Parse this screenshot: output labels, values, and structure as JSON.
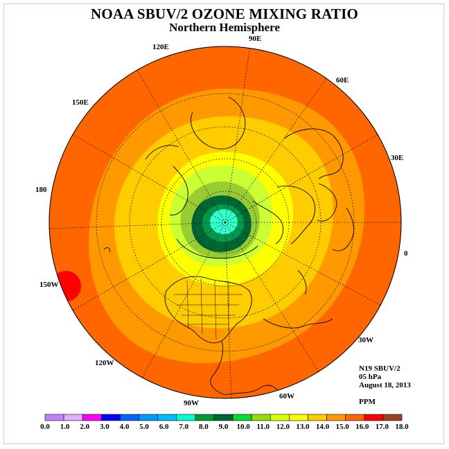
{
  "title": "NOAA SBUV/2 OZONE MIXING RATIO",
  "subtitle": "Northern Hemisphere",
  "longitude_labels": [
    "90E",
    "60E",
    "30E",
    "0",
    "30W",
    "60W",
    "90W",
    "120W",
    "150W",
    "180",
    "150E",
    "120E"
  ],
  "info": {
    "satellite": "N19 SBUV/2",
    "pressure": "05 hPa",
    "date": "August 18, 2013",
    "units": "PPM"
  },
  "colors": {
    "outer_band": "#ff6600",
    "band_15": "#ff9900",
    "band_14": "#ffcc00",
    "band_13": "#ffff00",
    "band_12": "#ccff33",
    "band_11": "#99cc33",
    "band_10": "#006633",
    "band_9": "#00994d",
    "center": "#33ffcc",
    "hot_spot": "#ff0000"
  },
  "colorbar": {
    "ticks": [
      "0.0",
      "1.0",
      "2.0",
      "3.0",
      "4.0",
      "5.0",
      "6.0",
      "7.0",
      "8.0",
      "9.0",
      "10.0",
      "11.0",
      "12.0",
      "13.0",
      "14.0",
      "15.0",
      "16.0",
      "17.0",
      "18.0"
    ],
    "colors": [
      "#c080ff",
      "#e0b0ff",
      "#ff00ff",
      "#0000ff",
      "#0066ff",
      "#0099ff",
      "#00bbff",
      "#00ffcc",
      "#009933",
      "#006633",
      "#00dd33",
      "#99dd00",
      "#ddff00",
      "#ffff00",
      "#ffcc00",
      "#ff9900",
      "#ff6600",
      "#ff0000",
      "#994422"
    ]
  }
}
